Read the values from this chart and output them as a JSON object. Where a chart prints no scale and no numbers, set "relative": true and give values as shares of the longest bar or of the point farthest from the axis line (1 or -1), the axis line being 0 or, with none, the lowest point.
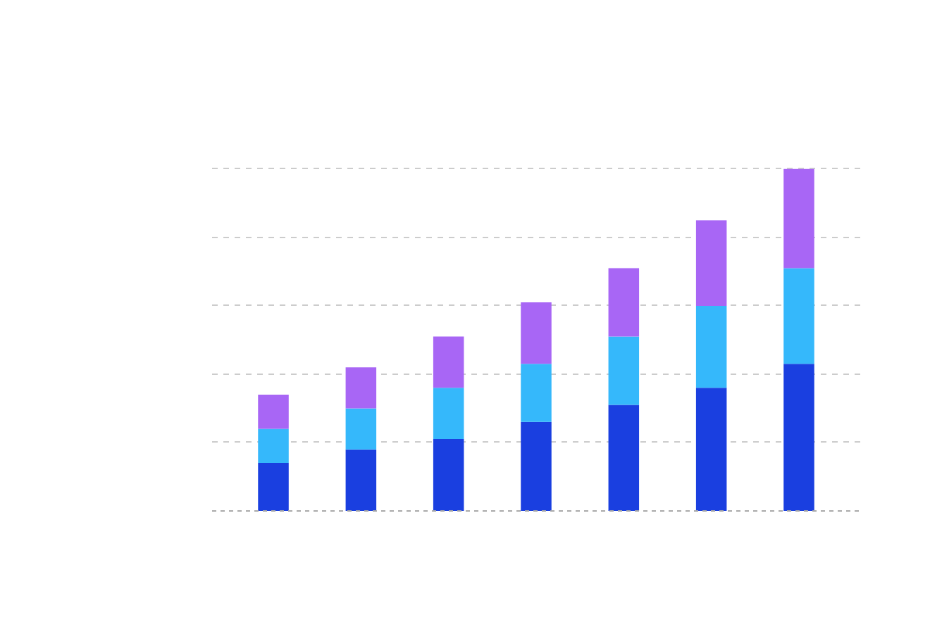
{
  "chart_data": {
    "type": "bar",
    "stacked": true,
    "relative": true,
    "grid": "y",
    "categories": [
      null,
      null,
      null,
      null,
      null,
      null,
      null
    ],
    "series": [
      {
        "color": "#1a3fe0",
        "values": [
          0.14,
          0.18,
          0.21,
          0.26,
          0.31,
          0.36,
          0.43
        ]
      },
      {
        "color": "#35b8fb",
        "values": [
          0.1,
          0.12,
          0.15,
          0.17,
          0.2,
          0.24,
          0.28
        ]
      },
      {
        "color": "#a866f5",
        "values": [
          0.1,
          0.12,
          0.15,
          0.18,
          0.2,
          0.25,
          0.29
        ]
      }
    ]
  }
}
